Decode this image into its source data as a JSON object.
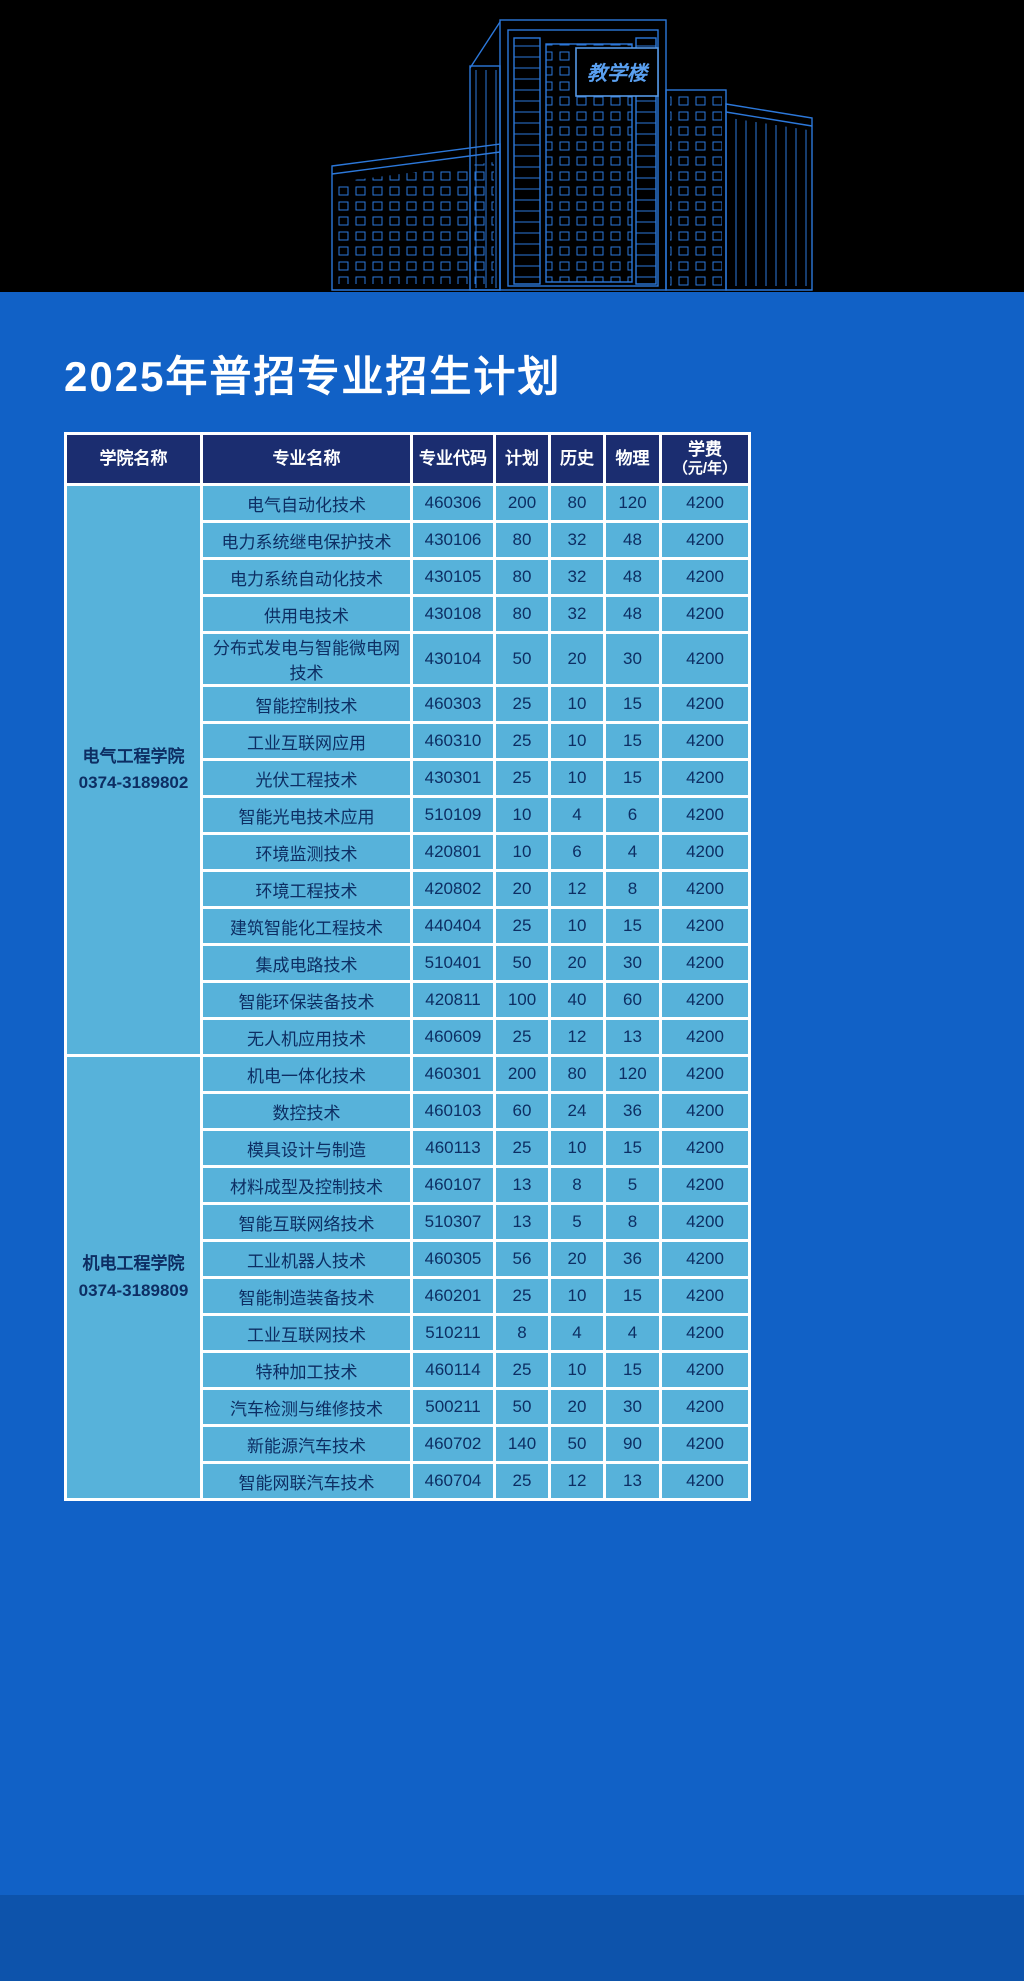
{
  "title": "2025年普招专业招生计划",
  "building": {
    "sign": "教学楼"
  },
  "colors": {
    "page_bg": "#1161c6",
    "banner_bg": "#000000",
    "header_bg": "#1b2d70",
    "cell_bg": "#57b2da",
    "cell_text": "#0d2e63",
    "footer_bg": "#0d53ab",
    "line": "#2f7fe6"
  },
  "table": {
    "headers": [
      {
        "label": "学院名称"
      },
      {
        "label": "专业名称"
      },
      {
        "label": "专业代码"
      },
      {
        "label": "计划"
      },
      {
        "label": "历史"
      },
      {
        "label": "物理"
      },
      {
        "label": "学费",
        "sub": "（元/年）"
      }
    ],
    "groups": [
      {
        "college": "电气工程学院",
        "phone": "0374-3189802",
        "rows": [
          [
            "电气自动化技术",
            "460306",
            "200",
            "80",
            "120",
            "4200"
          ],
          [
            "电力系统继电保护技术",
            "430106",
            "80",
            "32",
            "48",
            "4200"
          ],
          [
            "电力系统自动化技术",
            "430105",
            "80",
            "32",
            "48",
            "4200"
          ],
          [
            "供用电技术",
            "430108",
            "80",
            "32",
            "48",
            "4200"
          ],
          [
            "分布式发电与智能微电网技术",
            "430104",
            "50",
            "20",
            "30",
            "4200"
          ],
          [
            "智能控制技术",
            "460303",
            "25",
            "10",
            "15",
            "4200"
          ],
          [
            "工业互联网应用",
            "460310",
            "25",
            "10",
            "15",
            "4200"
          ],
          [
            "光伏工程技术",
            "430301",
            "25",
            "10",
            "15",
            "4200"
          ],
          [
            "智能光电技术应用",
            "510109",
            "10",
            "4",
            "6",
            "4200"
          ],
          [
            "环境监测技术",
            "420801",
            "10",
            "6",
            "4",
            "4200"
          ],
          [
            "环境工程技术",
            "420802",
            "20",
            "12",
            "8",
            "4200"
          ],
          [
            "建筑智能化工程技术",
            "440404",
            "25",
            "10",
            "15",
            "4200"
          ],
          [
            "集成电路技术",
            "510401",
            "50",
            "20",
            "30",
            "4200"
          ],
          [
            "智能环保装备技术",
            "420811",
            "100",
            "40",
            "60",
            "4200"
          ],
          [
            "无人机应用技术",
            "460609",
            "25",
            "12",
            "13",
            "4200"
          ]
        ]
      },
      {
        "college": "机电工程学院",
        "phone": "0374-3189809",
        "rows": [
          [
            "机电一体化技术",
            "460301",
            "200",
            "80",
            "120",
            "4200"
          ],
          [
            "数控技术",
            "460103",
            "60",
            "24",
            "36",
            "4200"
          ],
          [
            "模具设计与制造",
            "460113",
            "25",
            "10",
            "15",
            "4200"
          ],
          [
            "材料成型及控制技术",
            "460107",
            "13",
            "8",
            "5",
            "4200"
          ],
          [
            "智能互联网络技术",
            "510307",
            "13",
            "5",
            "8",
            "4200"
          ],
          [
            "工业机器人技术",
            "460305",
            "56",
            "20",
            "36",
            "4200"
          ],
          [
            "智能制造装备技术",
            "460201",
            "25",
            "10",
            "15",
            "4200"
          ],
          [
            "工业互联网技术",
            "510211",
            "8",
            "4",
            "4",
            "4200"
          ],
          [
            "特种加工技术",
            "460114",
            "25",
            "10",
            "15",
            "4200"
          ],
          [
            "汽车检测与维修技术",
            "500211",
            "50",
            "20",
            "30",
            "4200"
          ],
          [
            "新能源汽车技术",
            "460702",
            "140",
            "50",
            "90",
            "4200"
          ],
          [
            "智能网联汽车技术",
            "460704",
            "25",
            "12",
            "13",
            "4200"
          ]
        ]
      }
    ]
  }
}
